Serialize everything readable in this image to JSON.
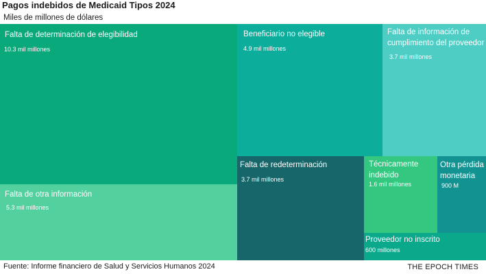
{
  "chart_data": {
    "type": "treemap",
    "title": "Pagos indebidos de Medicaid Tipos 2024",
    "subtitle": "Miles de millones de dólares",
    "unit": "miles de millones de dólares",
    "items": [
      {
        "label": "Falta de determinación de elegibilidad",
        "value": 10.3,
        "value_label": "10.3 mil millones",
        "color": "#0aa97c"
      },
      {
        "label": "Falta de otra información",
        "value": 5.3,
        "value_label": "5.3 mil millones",
        "color": "#52d19e"
      },
      {
        "label": "Beneficiario no elegible",
        "value": 4.9,
        "value_label": "4.9 mil millones",
        "color": "#0cad9b"
      },
      {
        "label": "Falta de información de cumplimiento del proveedor",
        "value": 3.7,
        "value_label": "3.7 mil millones",
        "color": "#4ecdc5"
      },
      {
        "label": "Falta de redeterminación",
        "value": 3.7,
        "value_label": "3.7 mil millones",
        "color": "#17676a"
      },
      {
        "label": "Técnicamente indebido",
        "value": 1.6,
        "value_label": "1.6 mil millones",
        "color": "#33c780"
      },
      {
        "label": "Otra pérdida monetaria",
        "value": 0.9,
        "value_label": "900 M",
        "color": "#129391"
      },
      {
        "label": "Proveedor no inscrito",
        "value": 0.6,
        "value_label": "600 millones",
        "color": "#0aa98c"
      }
    ]
  },
  "footer": {
    "source": "Fuente: Informe financiero de Salud y Servicios Humanos 2024",
    "brand": "THE EPOCH TIMES"
  }
}
